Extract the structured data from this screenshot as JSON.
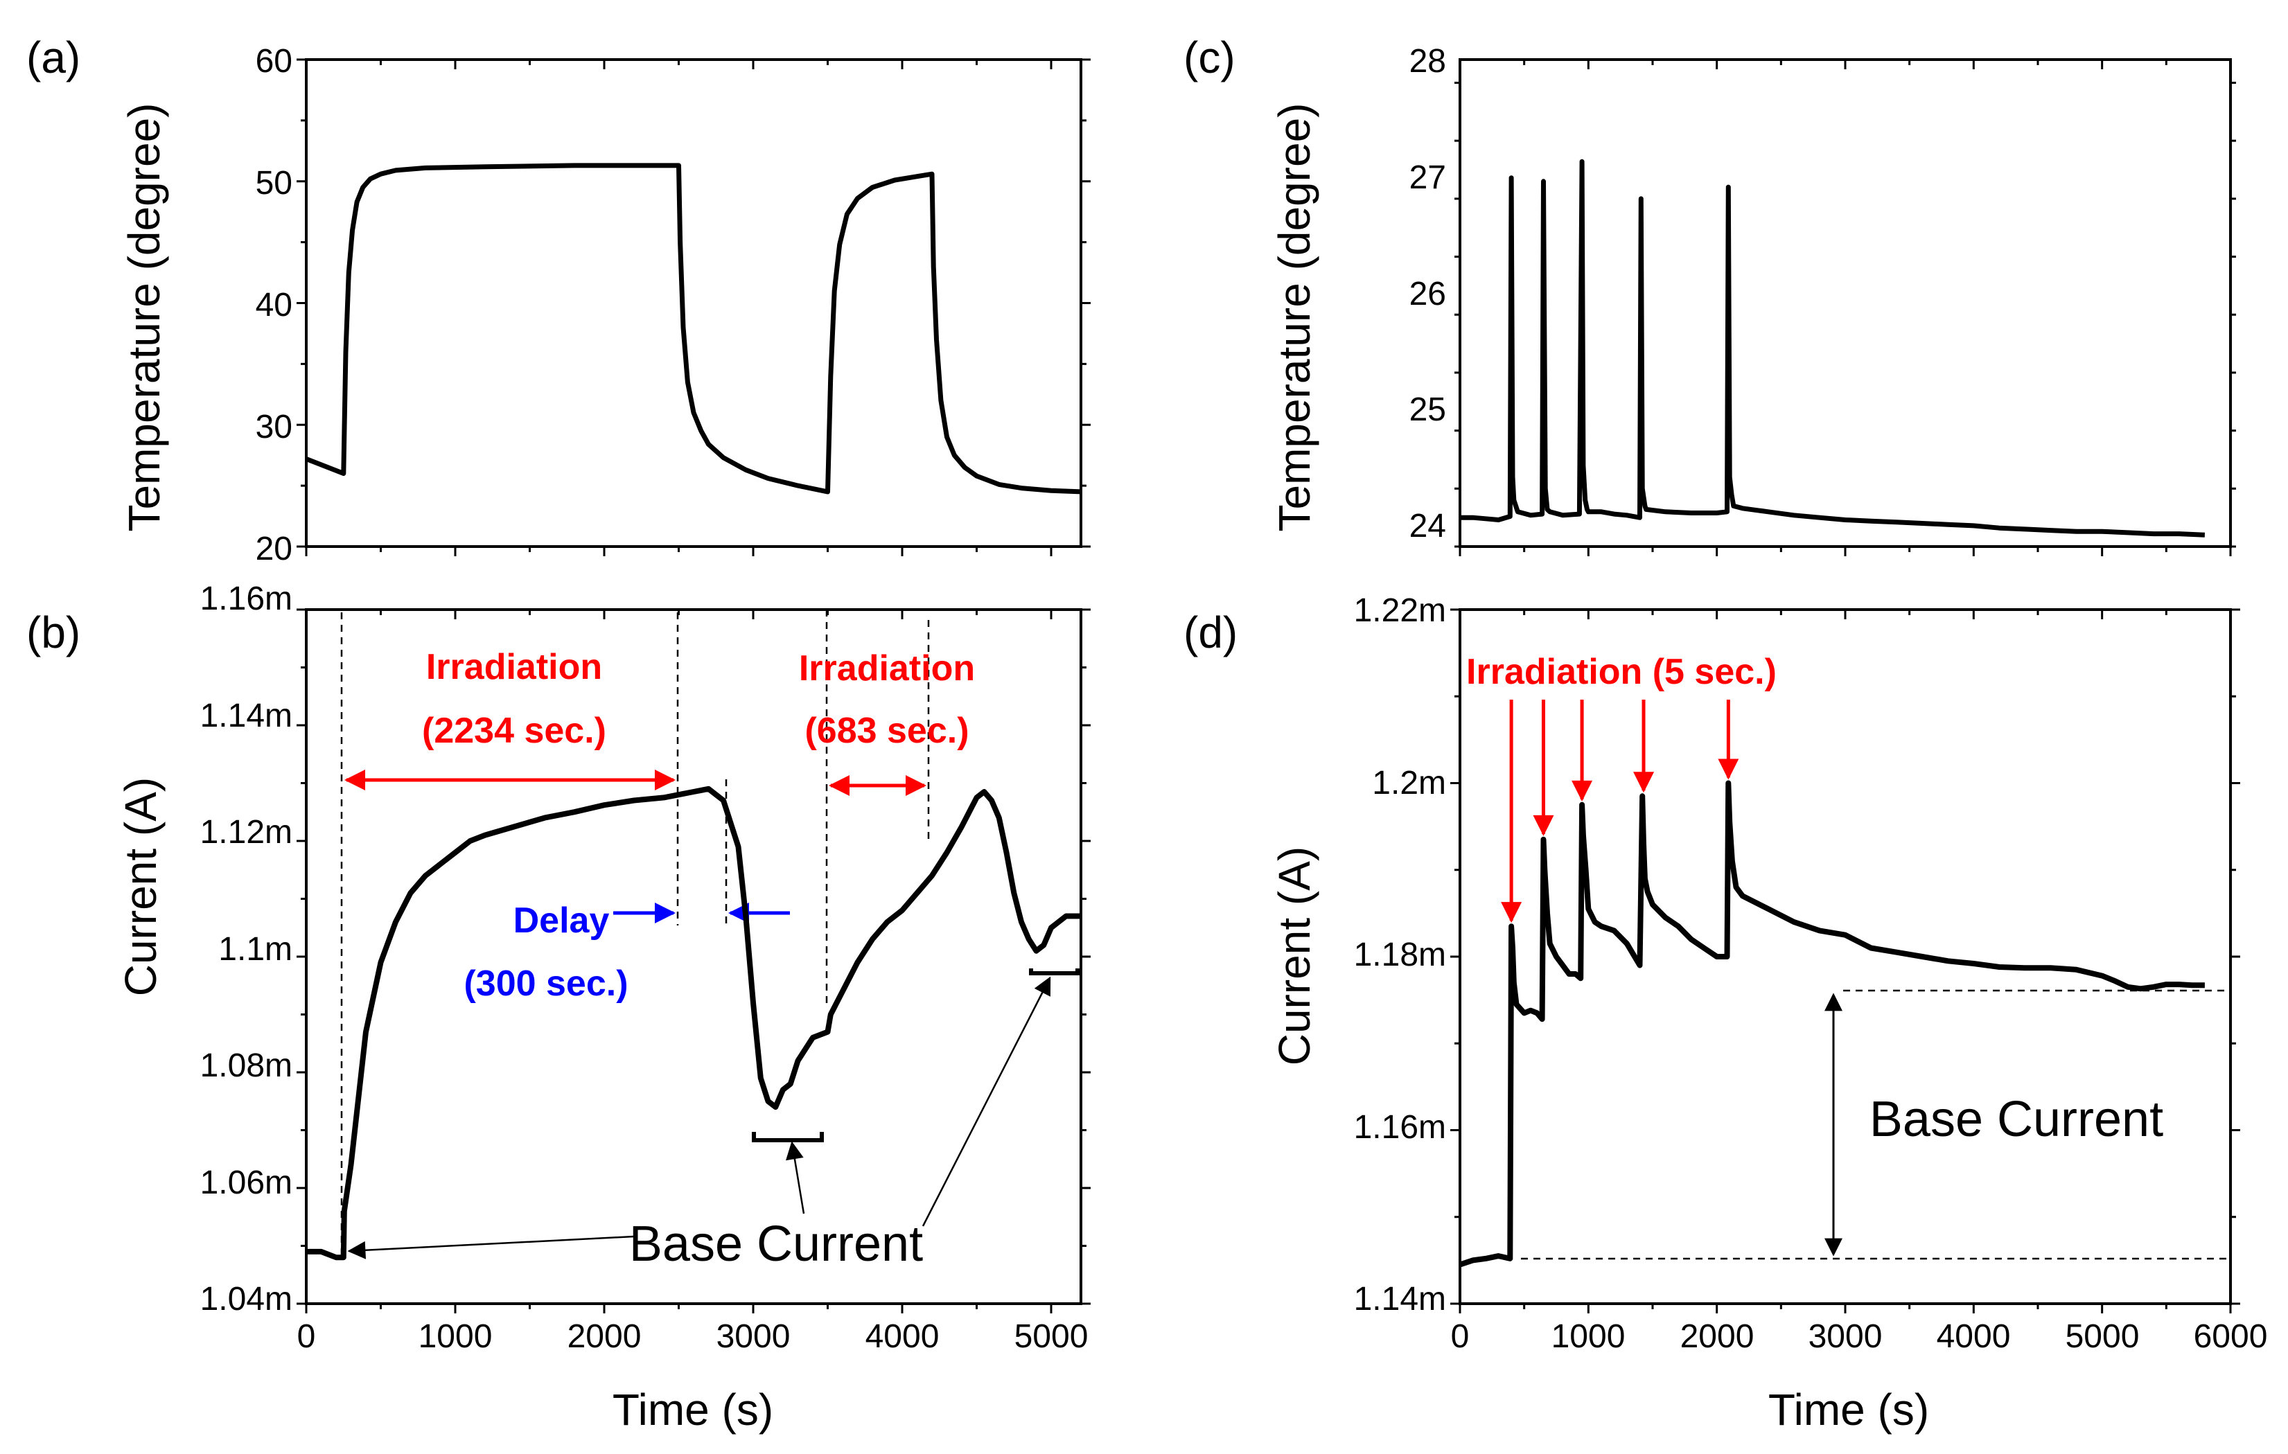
{
  "panels": [
    {
      "id": "a",
      "label": "(a)",
      "type": "line",
      "xlim": [
        0,
        5200
      ],
      "ylim": [
        20,
        60
      ],
      "xticks": [
        0,
        1000,
        2000,
        3000,
        4000,
        5000
      ],
      "xtick_labels": [],
      "yticks": [
        20,
        30,
        40,
        50,
        60
      ],
      "ytick_labels": [
        "20",
        "30",
        "40",
        "50",
        "60"
      ],
      "xlabel": "",
      "ylabel": "Temperature (degree)",
      "series": [
        {
          "name": "temperature",
          "x": [
            0,
            250,
            265,
            285,
            310,
            340,
            380,
            430,
            500,
            600,
            800,
            1200,
            1800,
            2200,
            2500,
            2510,
            2530,
            2560,
            2600,
            2650,
            2700,
            2800,
            2950,
            3100,
            3300,
            3500,
            3520,
            3545,
            3580,
            3630,
            3700,
            3800,
            3950,
            4100,
            4200,
            4210,
            4230,
            4260,
            4300,
            4350,
            4420,
            4500,
            4650,
            4800,
            5000,
            5200
          ],
          "y": [
            27.2,
            26.0,
            36.0,
            42.5,
            46.0,
            48.3,
            49.5,
            50.2,
            50.6,
            50.9,
            51.1,
            51.2,
            51.3,
            51.3,
            51.3,
            45.0,
            38.0,
            33.5,
            31.0,
            29.5,
            28.4,
            27.3,
            26.3,
            25.6,
            25.0,
            24.5,
            34.0,
            41.0,
            44.8,
            47.3,
            48.6,
            49.5,
            50.1,
            50.4,
            50.6,
            43.0,
            37.0,
            32.0,
            29.0,
            27.5,
            26.5,
            25.8,
            25.1,
            24.8,
            24.6,
            24.5
          ]
        }
      ]
    },
    {
      "id": "b",
      "label": "(b)",
      "type": "line",
      "xlim": [
        0,
        5200
      ],
      "ylim": [
        1.04,
        1.16
      ],
      "xticks": [
        0,
        1000,
        2000,
        3000,
        4000,
        5000
      ],
      "xtick_labels": [
        "0",
        "1000",
        "2000",
        "3000",
        "4000",
        "5000"
      ],
      "yticks": [
        1.04,
        1.06,
        1.08,
        1.1,
        1.12,
        1.14,
        1.16
      ],
      "ytick_labels": [
        "1.04m",
        "1.06m",
        "1.08m",
        "1.1m",
        "1.12m",
        "1.14m",
        "1.16m"
      ],
      "xlabel": "Time (s)",
      "ylabel": "Current (A)",
      "yunit": "mA",
      "series": [
        {
          "name": "current",
          "x": [
            0,
            100,
            200,
            250,
            255,
            300,
            400,
            500,
            600,
            700,
            800,
            900,
            1000,
            1100,
            1200,
            1400,
            1600,
            1800,
            2000,
            2200,
            2400,
            2500,
            2600,
            2700,
            2800,
            2900,
            2950,
            3000,
            3050,
            3100,
            3150,
            3200,
            3250,
            3300,
            3400,
            3500,
            3520,
            3600,
            3700,
            3800,
            3900,
            4000,
            4100,
            4200,
            4300,
            4400,
            4500,
            4550,
            4600,
            4650,
            4700,
            4750,
            4800,
            4850,
            4900,
            4950,
            5000,
            5100,
            5200
          ],
          "y": [
            1.049,
            1.049,
            1.048,
            1.048,
            1.056,
            1.064,
            1.087,
            1.099,
            1.106,
            1.111,
            1.114,
            1.116,
            1.118,
            1.12,
            1.121,
            1.1225,
            1.124,
            1.125,
            1.1262,
            1.127,
            1.1275,
            1.128,
            1.1285,
            1.129,
            1.127,
            1.119,
            1.107,
            1.092,
            1.079,
            1.075,
            1.074,
            1.077,
            1.078,
            1.082,
            1.086,
            1.087,
            1.09,
            1.094,
            1.099,
            1.103,
            1.106,
            1.108,
            1.111,
            1.114,
            1.118,
            1.1225,
            1.1275,
            1.1285,
            1.127,
            1.124,
            1.118,
            1.111,
            1.106,
            1.103,
            1.101,
            1.102,
            1.105,
            1.107,
            1.107
          ]
        }
      ],
      "annotations": {
        "irradiation_1": "Irradiation",
        "irradiation_1_duration": "(2234 sec.)",
        "irradiation_2": "Irradiation",
        "irradiation_2_duration": "(683 sec.)",
        "delay": "Delay",
        "delay_duration": "(300 sec.)",
        "base_current": "Base Current"
      }
    },
    {
      "id": "c",
      "label": "(c)",
      "type": "line",
      "xlim": [
        0,
        6000
      ],
      "ylim": [
        23.8,
        28
      ],
      "xticks": [
        0,
        1000,
        2000,
        3000,
        4000,
        5000,
        6000
      ],
      "xtick_labels": [],
      "yticks": [
        24,
        25,
        26,
        27,
        28
      ],
      "ytick_labels": [
        "24",
        "25",
        "26",
        "27",
        "28"
      ],
      "xlabel": "",
      "ylabel": "Temperature (degree)",
      "series": [
        {
          "name": "temperature",
          "x": [
            0,
            100,
            200,
            300,
            390,
            400,
            410,
            420,
            450,
            550,
            640,
            650,
            665,
            680,
            700,
            800,
            930,
            950,
            960,
            975,
            990,
            1000,
            1100,
            1200,
            1300,
            1400,
            1410,
            1420,
            1440,
            1450,
            1600,
            1800,
            2000,
            2080,
            2090,
            2100,
            2115,
            2130,
            2200,
            2400,
            2600,
            2800,
            3000,
            3200,
            3400,
            3600,
            3800,
            4000,
            4200,
            4400,
            4600,
            4800,
            5000,
            5200,
            5400,
            5600,
            5800
          ],
          "y": [
            24.05,
            24.05,
            24.04,
            24.03,
            24.06,
            26.98,
            24.4,
            24.2,
            24.1,
            24.07,
            24.08,
            26.95,
            24.3,
            24.12,
            24.1,
            24.07,
            24.08,
            27.12,
            24.5,
            24.2,
            24.12,
            24.1,
            24.1,
            24.08,
            24.07,
            24.05,
            26.8,
            24.3,
            24.15,
            24.12,
            24.1,
            24.09,
            24.09,
            24.1,
            26.9,
            24.4,
            24.25,
            24.15,
            24.13,
            24.1,
            24.07,
            24.05,
            24.03,
            24.02,
            24.01,
            24.0,
            23.99,
            23.98,
            23.96,
            23.95,
            23.94,
            23.93,
            23.93,
            23.92,
            23.91,
            23.91,
            23.9
          ]
        }
      ]
    },
    {
      "id": "d",
      "label": "(d)",
      "type": "line",
      "xlim": [
        0,
        6000
      ],
      "ylim": [
        1.14,
        1.22
      ],
      "xticks": [
        0,
        1000,
        2000,
        3000,
        4000,
        5000,
        6000
      ],
      "xtick_labels": [
        "0",
        "1000",
        "2000",
        "3000",
        "4000",
        "5000",
        "6000"
      ],
      "yticks": [
        1.14,
        1.16,
        1.18,
        1.2,
        1.22
      ],
      "ytick_labels": [
        "1.14m",
        "1.16m",
        "1.18m",
        "1.2m",
        "1.22m"
      ],
      "xlabel": "Time (s)",
      "ylabel": "Current (A)",
      "yunit": "mA",
      "series": [
        {
          "name": "current",
          "x": [
            0,
            100,
            200,
            300,
            390,
            400,
            410,
            420,
            440,
            470,
            500,
            550,
            600,
            640,
            650,
            660,
            680,
            700,
            750,
            800,
            850,
            900,
            940,
            950,
            960,
            980,
            1000,
            1050,
            1100,
            1200,
            1300,
            1400,
            1420,
            1430,
            1440,
            1460,
            1500,
            1600,
            1700,
            1800,
            1900,
            2000,
            2080,
            2090,
            2100,
            2120,
            2150,
            2200,
            2400,
            2600,
            2800,
            3000,
            3200,
            3400,
            3600,
            3800,
            4000,
            4200,
            4400,
            4600,
            4800,
            5000,
            5100,
            5200,
            5300,
            5400,
            5500,
            5600,
            5700,
            5800
          ],
          "y": [
            1.1445,
            1.145,
            1.1452,
            1.1455,
            1.1452,
            1.1835,
            1.181,
            1.177,
            1.1745,
            1.174,
            1.1735,
            1.1738,
            1.1735,
            1.1728,
            1.1935,
            1.19,
            1.185,
            1.1815,
            1.18,
            1.179,
            1.178,
            1.178,
            1.1775,
            1.1975,
            1.194,
            1.19,
            1.1855,
            1.184,
            1.1835,
            1.183,
            1.1815,
            1.179,
            1.1985,
            1.193,
            1.189,
            1.1875,
            1.186,
            1.1845,
            1.1835,
            1.182,
            1.181,
            1.18,
            1.18,
            1.2,
            1.1955,
            1.191,
            1.188,
            1.187,
            1.1855,
            1.184,
            1.183,
            1.1825,
            1.181,
            1.1805,
            1.18,
            1.1795,
            1.1792,
            1.1788,
            1.1787,
            1.1787,
            1.1785,
            1.1778,
            1.1772,
            1.1765,
            1.1763,
            1.1765,
            1.1768,
            1.1768,
            1.1767,
            1.1767
          ]
        }
      ],
      "annotations": {
        "irradiation": "Irradiation (5 sec.)",
        "base_current": "Base Current"
      },
      "irradiation_times": [
        400,
        650,
        950,
        1430,
        2090
      ]
    }
  ],
  "colors": {
    "line": "#000000",
    "irradiation": "#ff0000",
    "delay": "#0000ff"
  }
}
